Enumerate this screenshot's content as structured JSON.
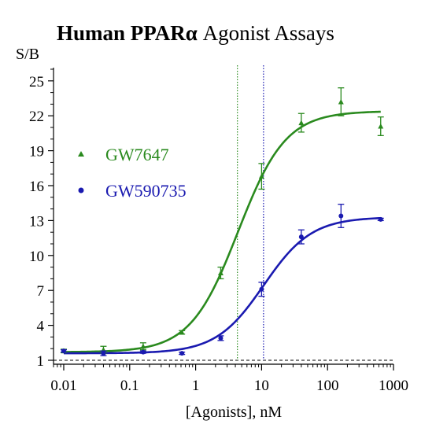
{
  "chart_data": {
    "type": "scatter",
    "title_bold": "Human PPARα",
    "title_rest": " Agonist Assays",
    "ylabel": "S/B",
    "xlabel": "[Agonists], nM",
    "x_scale": "log",
    "xlim": [
      0.007,
      1000
    ],
    "ylim": [
      1,
      26
    ],
    "x_ticks": [
      0.01,
      0.1,
      1,
      10,
      100,
      1000
    ],
    "x_tick_labels": [
      "0.01",
      "0.1",
      "1",
      "10",
      "100",
      "1000"
    ],
    "y_ticks": [
      1,
      4,
      7,
      10,
      13,
      16,
      19,
      22,
      25
    ],
    "y_tick_labels": [
      "1",
      "4",
      "7",
      "10",
      "13",
      "16",
      "19",
      "22",
      "25"
    ],
    "baseline_y": 1,
    "legend_position": "left",
    "series": [
      {
        "name": "GW7647",
        "color": "#2a8a1e",
        "marker": "triangle",
        "ec50_line_x": 4.3,
        "x": [
          0.01,
          0.04,
          0.16,
          0.62,
          2.4,
          10,
          40,
          160,
          640
        ],
        "y": [
          1.8,
          1.9,
          2.2,
          3.4,
          8.5,
          16.8,
          21.4,
          23.2,
          21.1
        ],
        "err": [
          0.15,
          0.3,
          0.3,
          0.15,
          0.5,
          1.1,
          0.8,
          1.2,
          0.8
        ],
        "fit": {
          "bottom": 1.7,
          "top": 22.4,
          "ec50": 4.4,
          "hill": 1.2
        }
      },
      {
        "name": "GW590735",
        "color": "#1a1ab0",
        "marker": "circle",
        "ec50_line_x": 10.7,
        "x": [
          0.01,
          0.04,
          0.16,
          0.62,
          2.4,
          10,
          40,
          160,
          640
        ],
        "y": [
          1.8,
          1.6,
          1.7,
          1.6,
          2.9,
          7.1,
          11.6,
          13.4,
          13.1
        ],
        "err": [
          0.1,
          0.2,
          0.1,
          0.1,
          0.2,
          0.6,
          0.6,
          1.0,
          0.1
        ],
        "fit": {
          "bottom": 1.6,
          "top": 13.3,
          "ec50": 10.8,
          "hill": 1.2
        }
      }
    ]
  }
}
